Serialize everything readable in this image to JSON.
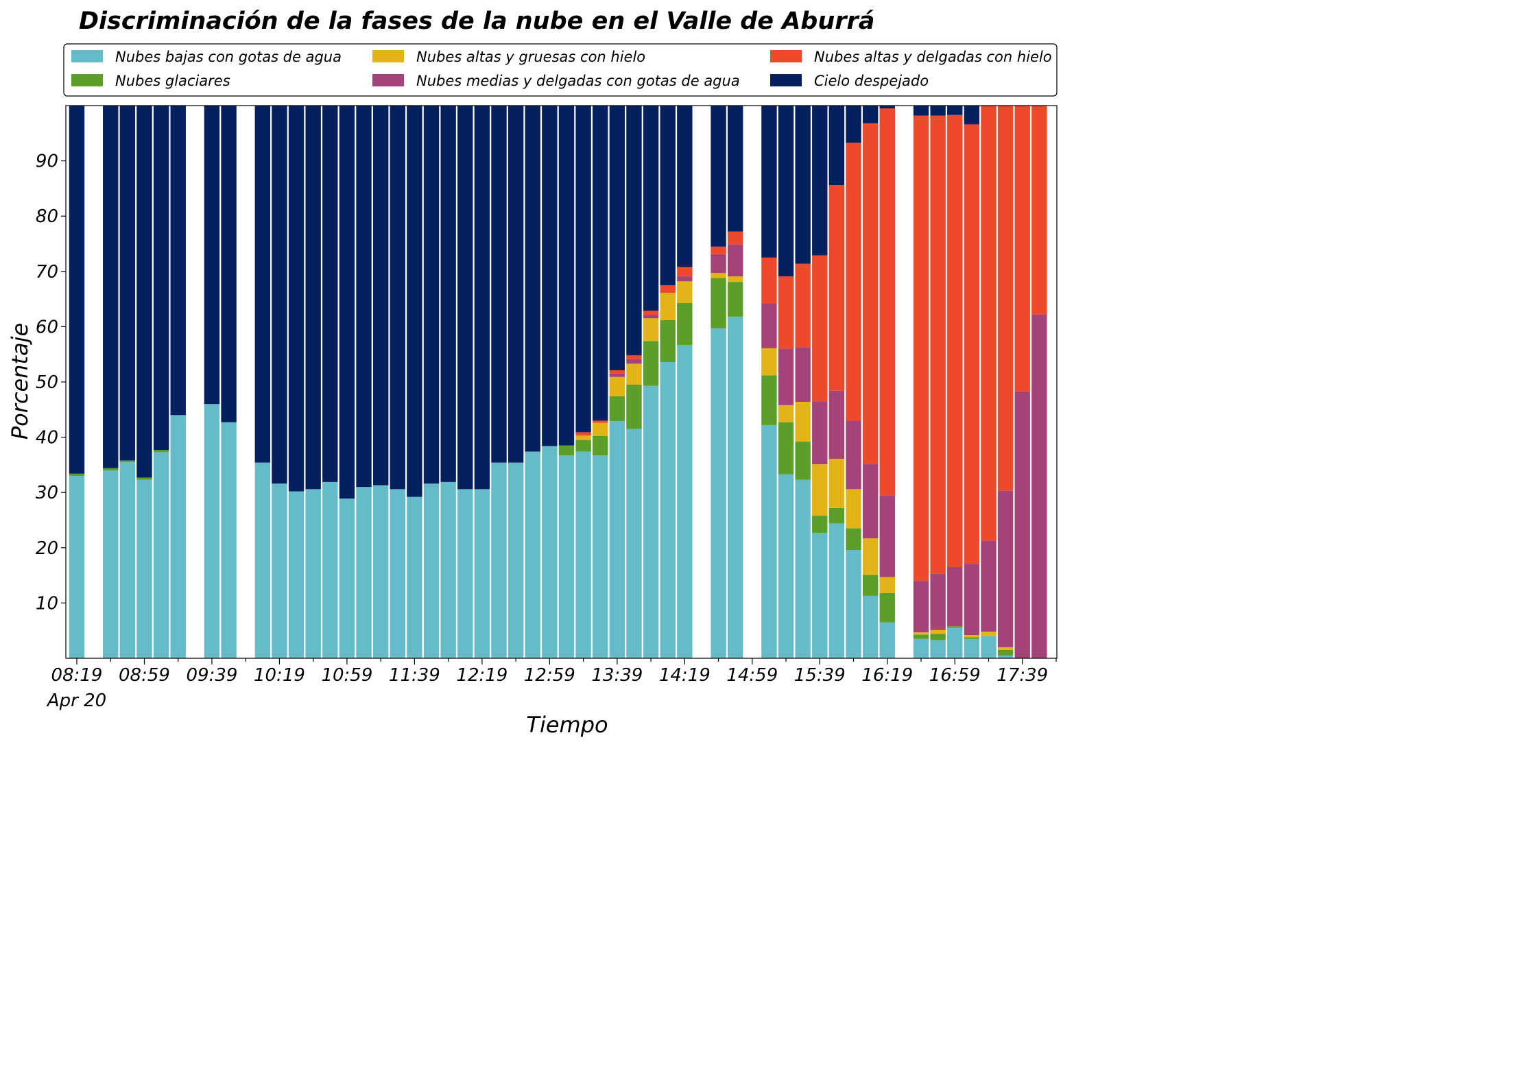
{
  "chart_data": {
    "type": "bar",
    "stacked": true,
    "title": "Discriminación de la fases de la nube en el Valle de Aburrá",
    "xlabel": "Tiempo",
    "ylabel": "Porcentaje",
    "ylim": [
      0,
      100
    ],
    "grid": false,
    "legend_position": "top",
    "x_tick_labels": [
      "08:19",
      "08:59",
      "09:39",
      "10:19",
      "10:59",
      "11:39",
      "12:19",
      "12:59",
      "13:39",
      "14:19",
      "14:59",
      "15:39",
      "16:19",
      "16:59",
      "17:39"
    ],
    "x_date_label": "Apr 20",
    "y_tick_labels": [
      "10",
      "20",
      "30",
      "40",
      "50",
      "60",
      "70",
      "80",
      "90"
    ],
    "categories": [
      "08:19",
      "08:29",
      "08:39",
      "08:49",
      "08:59",
      "09:09",
      "09:19",
      "09:29",
      "09:39",
      "09:49",
      "09:59",
      "10:09",
      "10:19",
      "10:29",
      "10:39",
      "10:49",
      "10:59",
      "11:09",
      "11:19",
      "11:29",
      "11:39",
      "11:49",
      "11:59",
      "12:09",
      "12:19",
      "12:29",
      "12:39",
      "12:49",
      "12:59",
      "13:09",
      "13:19",
      "13:29",
      "13:39",
      "13:49",
      "13:59",
      "14:09",
      "14:19",
      "14:29",
      "14:39",
      "14:49",
      "14:59",
      "15:09",
      "15:19",
      "15:29",
      "15:39",
      "15:49",
      "15:59",
      "16:09",
      "16:19",
      "16:29",
      "16:39",
      "16:49",
      "16:59",
      "17:09",
      "17:19",
      "17:29",
      "17:39",
      "17:49"
    ],
    "series": [
      {
        "name": "Nubes bajas con gotas de agua",
        "color": "#65bcc8",
        "values": [
          33,
          null,
          34,
          35.5,
          32.3,
          37.3,
          44,
          null,
          46,
          42.7,
          null,
          35.4,
          31.6,
          30.2,
          30.6,
          31.9,
          28.9,
          31,
          31.3,
          30.6,
          29.2,
          31.6,
          31.9,
          30.6,
          30.6,
          35.4,
          35.4,
          37.4,
          38.4,
          36.7,
          37.4,
          36.7,
          42.9,
          41.5,
          49.3,
          53.6,
          56.7,
          null,
          59.7,
          61.8,
          null,
          42.2,
          33.3,
          32.3,
          22.7,
          24.4,
          19.6,
          11.3,
          6.5,
          null,
          3.5,
          3.3,
          5.5,
          3.5,
          4,
          0.5,
          0,
          0
        ]
      },
      {
        "name": "Nubes glaciares",
        "color": "#5b9e2a",
        "values": [
          0.4,
          null,
          0.4,
          0.3,
          0.4,
          0.4,
          0,
          null,
          0,
          0,
          null,
          0,
          0,
          0,
          0,
          0,
          0,
          0,
          0,
          0,
          0,
          0,
          0,
          0,
          0,
          0,
          0,
          0,
          0,
          1.8,
          2.1,
          3.5,
          4.5,
          8,
          8.1,
          7.6,
          7.6,
          null,
          9.1,
          6.3,
          null,
          9,
          9.4,
          6.9,
          3.1,
          2.8,
          3.9,
          3.8,
          5.3,
          null,
          0.8,
          1.1,
          0.3,
          0.3,
          0,
          1,
          0,
          0
        ]
      },
      {
        "name": "Nubes altas y gruesas con hielo",
        "color": "#e2b418",
        "values": [
          0,
          null,
          0,
          0,
          0,
          0,
          0,
          null,
          0,
          0,
          null,
          0,
          0,
          0,
          0,
          0,
          0,
          0,
          0,
          0,
          0,
          0,
          0,
          0,
          0,
          0,
          0,
          0,
          0,
          0,
          0.8,
          2.4,
          3.5,
          3.8,
          4.1,
          4.9,
          3.9,
          null,
          0.9,
          1,
          null,
          4.9,
          3.1,
          7.2,
          9.3,
          8.9,
          7.1,
          6.6,
          2.9,
          null,
          0.4,
          0.7,
          0,
          0.4,
          0.8,
          0.5,
          0,
          0
        ]
      },
      {
        "name": "Nubes medias y delgadas con gotas de agua",
        "color": "#a34377",
        "values": [
          0,
          null,
          0,
          0,
          0,
          0,
          0,
          null,
          0,
          0,
          null,
          0,
          0,
          0,
          0,
          0,
          0,
          0,
          0,
          0,
          0,
          0,
          0,
          0,
          0,
          0,
          0,
          0,
          0,
          0,
          0,
          0,
          0.6,
          0.8,
          0.6,
          0,
          0.9,
          null,
          3.4,
          5.8,
          null,
          8.1,
          10.2,
          9.9,
          11.4,
          12.3,
          12.4,
          13.5,
          14.8,
          null,
          9.3,
          10.2,
          10.7,
          12.9,
          16.5,
          28.3,
          48.3,
          62.2
        ]
      },
      {
        "name": "Nubes altas y delgadas con hielo",
        "color": "#ec4a2a",
        "values": [
          0,
          null,
          0,
          0,
          0,
          0,
          0,
          null,
          0,
          0,
          null,
          0,
          0,
          0,
          0,
          0,
          0,
          0,
          0,
          0,
          0,
          0,
          0,
          0,
          0,
          0,
          0,
          0,
          0,
          0,
          0.6,
          0.4,
          0.6,
          0.7,
          0.8,
          1.4,
          1.7,
          null,
          1.4,
          2.3,
          null,
          8.3,
          13.1,
          15.1,
          26.4,
          37.2,
          50.3,
          61.6,
          70,
          null,
          84.2,
          82.9,
          81.8,
          79.5,
          78.7,
          69.7,
          51.7,
          37.8
        ]
      },
      {
        "name": "Cielo despejado",
        "color": "#04205e",
        "values": [
          66.6,
          null,
          65.6,
          64.2,
          67.3,
          62.3,
          56,
          null,
          54,
          57.3,
          null,
          64.6,
          68.4,
          69.8,
          69.4,
          68.1,
          71.1,
          69,
          68.7,
          69.4,
          70.8,
          68.4,
          68.1,
          69.4,
          69.4,
          64.6,
          64.6,
          62.6,
          61.6,
          61.5,
          59.1,
          57,
          47.9,
          45.2,
          37.1,
          32.5,
          29.2,
          null,
          25.5,
          22.8,
          null,
          27.5,
          30.9,
          28.6,
          27.1,
          14.4,
          6.7,
          3.2,
          0.5,
          null,
          1.8,
          1.8,
          1.7,
          3.4,
          0,
          0,
          0,
          0
        ]
      }
    ]
  }
}
